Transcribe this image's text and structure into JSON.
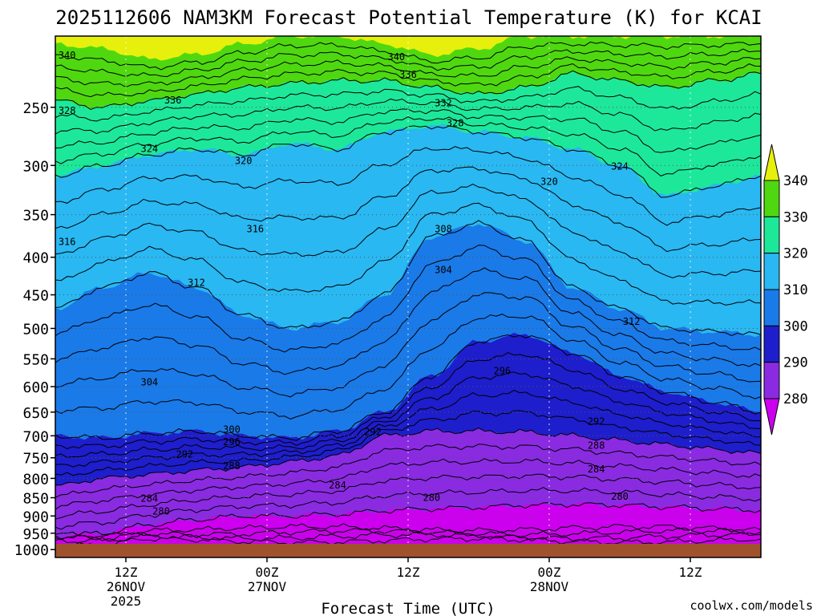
{
  "header": {
    "title": "2025112606 NAM3KM Forecast Potential Temperature (K) for KCAI"
  },
  "footer": {
    "credit": "coolwx.com/models"
  },
  "colors": {
    "ground": "#a0522d",
    "grid": "#555555",
    "credit": "#e03c3c",
    "bands": [
      "#cc00ee",
      "#8a2be2",
      "#1e1ecc",
      "#1a7ae8",
      "#29b8f2",
      "#1de89a",
      "#4fd810",
      "#e6f00c"
    ]
  },
  "chart_data": {
    "type": "contour",
    "title": "2025112606 NAM3KM Forecast Potential Temperature (K) for KCAI",
    "xlabel": "Forecast Time (UTC)",
    "ylabel": "",
    "y_scale": "log-pressure",
    "ylim": [
      1000,
      200
    ],
    "xlim_hours": [
      0,
      60
    ],
    "y_ticks": [
      250,
      300,
      350,
      400,
      450,
      500,
      550,
      600,
      650,
      700,
      750,
      800,
      850,
      900,
      950,
      1000
    ],
    "x_ticks": [
      {
        "hour": 6,
        "label": "12Z",
        "sub1": "26NOV",
        "sub2": "2025"
      },
      {
        "hour": 18,
        "label": "00Z",
        "sub1": "27NOV",
        "sub2": ""
      },
      {
        "hour": 30,
        "label": "12Z",
        "sub1": "",
        "sub2": ""
      },
      {
        "hour": 42,
        "label": "00Z",
        "sub1": "28NOV",
        "sub2": ""
      },
      {
        "hour": 54,
        "label": "12Z",
        "sub1": "",
        "sub2": ""
      }
    ],
    "grid": true,
    "legend": {
      "placement": "right",
      "labels": [
        "340",
        "330",
        "320",
        "310",
        "300",
        "290",
        "280"
      ],
      "bands": [
        {
          "range": [
            330,
            340
          ],
          "color": "#4fd810"
        },
        {
          "range": [
            320,
            330
          ],
          "color": "#1de89a"
        },
        {
          "range": [
            310,
            320
          ],
          "color": "#29b8f2"
        },
        {
          "range": [
            300,
            310
          ],
          "color": "#1a7ae8"
        },
        {
          "range": [
            290,
            300
          ],
          "color": "#1e1ecc"
        },
        {
          "range": [
            280,
            290
          ],
          "color": "#8a2be2"
        }
      ],
      "over_color": "#e6f00c",
      "under_color": "#cc00ee"
    },
    "contour_interval": 2,
    "theta_pressure_levels": [
      {
        "theta": 280,
        "pressure_hpa": [
          960,
          950,
          925,
          910,
          900,
          900,
          895,
          885,
          880,
          876,
          870,
          868,
          870,
          875,
          880,
          884
        ]
      },
      {
        "theta": 290,
        "pressure_hpa": [
          820,
          800,
          790,
          780,
          772,
          760,
          745,
          700,
          690,
          690,
          692,
          700,
          710,
          720,
          730,
          740
        ]
      },
      {
        "theta": 300,
        "pressure_hpa": [
          700,
          705,
          695,
          690,
          700,
          705,
          690,
          650,
          580,
          520,
          510,
          540,
          580,
          610,
          630,
          650
        ]
      },
      {
        "theta": 310,
        "pressure_hpa": [
          470,
          440,
          420,
          440,
          480,
          500,
          490,
          450,
          375,
          360,
          380,
          440,
          470,
          500,
          505,
          510
        ]
      },
      {
        "theta": 320,
        "pressure_hpa": [
          310,
          300,
          290,
          285,
          290,
          280,
          285,
          270,
          265,
          270,
          275,
          285,
          300,
          330,
          320,
          310
        ]
      },
      {
        "theta": 330,
        "pressure_hpa": [
          245,
          250,
          245,
          240,
          235,
          232,
          230,
          230,
          235,
          240,
          235,
          225,
          230,
          235,
          230,
          225
        ]
      },
      {
        "theta": 340,
        "pressure_hpa": [
          205,
          208,
          215,
          212,
          205,
          200,
          200,
          205,
          212,
          208,
          200,
          200,
          200,
          200,
          200,
          200
        ]
      }
    ],
    "time_hours": [
      0,
      4,
      8,
      12,
      16,
      20,
      24,
      28,
      32,
      36,
      40,
      44,
      48,
      52,
      56,
      60
    ],
    "contour_labels": [
      {
        "text": "340",
        "hour": 1,
        "pressure": 212
      },
      {
        "text": "340",
        "hour": 29,
        "pressure": 213
      },
      {
        "text": "336",
        "hour": 30,
        "pressure": 225
      },
      {
        "text": "336",
        "hour": 10,
        "pressure": 244
      },
      {
        "text": "332",
        "hour": 33,
        "pressure": 246
      },
      {
        "text": "328",
        "hour": 1,
        "pressure": 252
      },
      {
        "text": "328",
        "hour": 34,
        "pressure": 262
      },
      {
        "text": "324",
        "hour": 8,
        "pressure": 284
      },
      {
        "text": "324",
        "hour": 48,
        "pressure": 300
      },
      {
        "text": "320",
        "hour": 16,
        "pressure": 295
      },
      {
        "text": "320",
        "hour": 42,
        "pressure": 315
      },
      {
        "text": "316",
        "hour": 1,
        "pressure": 380
      },
      {
        "text": "316",
        "hour": 17,
        "pressure": 365
      },
      {
        "text": "312",
        "hour": 12,
        "pressure": 432
      },
      {
        "text": "312",
        "hour": 49,
        "pressure": 488
      },
      {
        "text": "308",
        "hour": 33,
        "pressure": 365
      },
      {
        "text": "304",
        "hour": 33,
        "pressure": 415
      },
      {
        "text": "304",
        "hour": 8,
        "pressure": 590
      },
      {
        "text": "296",
        "hour": 38,
        "pressure": 570
      },
      {
        "text": "300",
        "hour": 15,
        "pressure": 685
      },
      {
        "text": "296",
        "hour": 15,
        "pressure": 712
      },
      {
        "text": "292",
        "hour": 27,
        "pressure": 690
      },
      {
        "text": "292",
        "hour": 11,
        "pressure": 740
      },
      {
        "text": "292",
        "hour": 46,
        "pressure": 668
      },
      {
        "text": "288",
        "hour": 15,
        "pressure": 768
      },
      {
        "text": "288",
        "hour": 46,
        "pressure": 720
      },
      {
        "text": "284",
        "hour": 24,
        "pressure": 815
      },
      {
        "text": "284",
        "hour": 46,
        "pressure": 775
      },
      {
        "text": "284",
        "hour": 8,
        "pressure": 850
      },
      {
        "text": "280",
        "hour": 32,
        "pressure": 848
      },
      {
        "text": "280",
        "hour": 48,
        "pressure": 845
      },
      {
        "text": "280",
        "hour": 9,
        "pressure": 885
      }
    ]
  }
}
